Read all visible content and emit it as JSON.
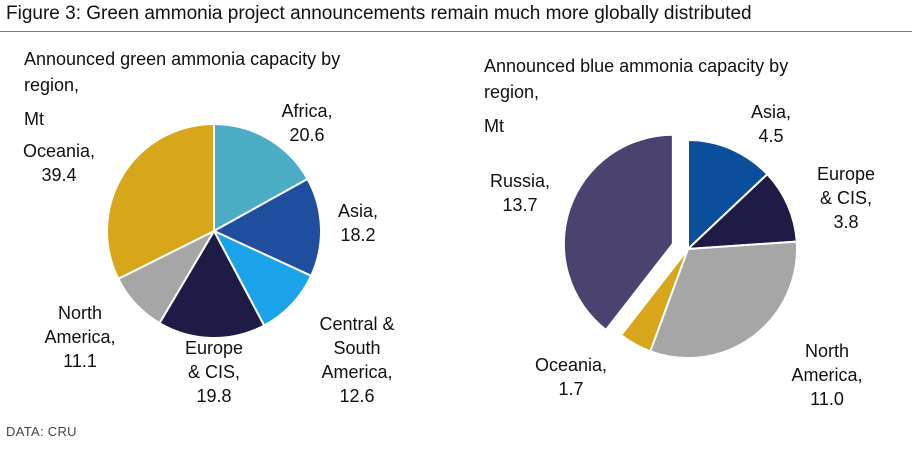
{
  "figure_title": "Figure 3: Green ammonia project announcements remain much more globally distributed",
  "source": "DATA:  CRU",
  "chart_data": [
    {
      "type": "pie",
      "title_lines": [
        "Announced green ammonia capacity by",
        "region,"
      ],
      "unit": "Mt",
      "slices": [
        {
          "name": "Africa",
          "value": 20.6,
          "color": "#4bacc6",
          "label_lines": [
            "Africa,",
            "20.6"
          ]
        },
        {
          "name": "Asia",
          "value": 18.2,
          "color": "#1f4e9e",
          "label_lines": [
            "Asia,",
            "18.2"
          ]
        },
        {
          "name": "Central & South America",
          "value": 12.6,
          "color": "#1aa3e8",
          "label_lines": [
            "Central &",
            "South",
            "America,",
            "12.6"
          ]
        },
        {
          "name": "Europe & CIS",
          "value": 19.8,
          "color": "#1e1b47",
          "label_lines": [
            "Europe",
            "& CIS,",
            "19.8"
          ]
        },
        {
          "name": "North America",
          "value": 11.1,
          "color": "#a6a6a6",
          "label_lines": [
            "North",
            "America,",
            "11.1"
          ]
        },
        {
          "name": "Oceania",
          "value": 39.4,
          "color": "#d8a61a",
          "label_lines": [
            "Oceania,",
            "39.4"
          ]
        }
      ]
    },
    {
      "type": "pie",
      "title_lines": [
        "Announced blue ammonia capacity by",
        "region,"
      ],
      "unit": "Mt",
      "slices": [
        {
          "name": "Asia",
          "value": 4.5,
          "color": "#0b4f9c",
          "label_lines": [
            "Asia,",
            "4.5"
          ]
        },
        {
          "name": "Europe & CIS",
          "value": 3.8,
          "color": "#1e1b47",
          "label_lines": [
            "Europe",
            "& CIS,",
            "3.8"
          ]
        },
        {
          "name": "North America",
          "value": 11.0,
          "color": "#a6a6a6",
          "label_lines": [
            "North",
            "America,",
            "11.0"
          ]
        },
        {
          "name": "Oceania",
          "value": 1.7,
          "color": "#d8a61a",
          "label_lines": [
            "Oceania,",
            "1.7"
          ]
        },
        {
          "name": "Russia",
          "value": 13.7,
          "color": "#4b4270",
          "label_lines": [
            "Russia,",
            "13.7"
          ],
          "exploded": true
        }
      ]
    }
  ]
}
